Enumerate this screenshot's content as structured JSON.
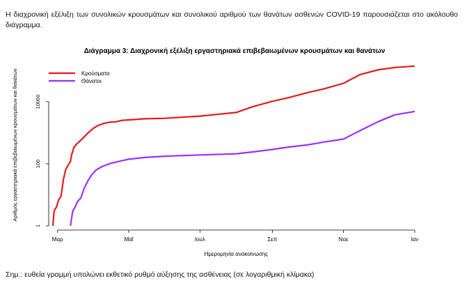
{
  "intro_text": "Η διαχρονική εξέλιξη των συνολικών κρουσμάτων και συνολικού αριθμού των θανάτων ασθενών COVID-19 παρουσιάζεται στο ακόλουθο διάγραμμα.",
  "footnote": "Σημ.: ευθεία γραμμή υπολώνει εκθετικό ρυθμό αύξησης της ασθένειας (σε λογαριθμική κλίμακα)",
  "chart_data": {
    "type": "line",
    "title": "Διάγραμμα 3: Διαχρονική εξέλιξη εργαστηριακά επιβεβαιωμένων κρουσμάτων και θανάτων",
    "xlabel": "Ημερομηνία ανακοίνωσης",
    "ylabel": "Αριθμός εργαστηριακά επιβεβαιωμένων κρουσμάτων και θανάτων",
    "y_scale": "log",
    "ylim": [
      1,
      180000
    ],
    "xlim": [
      "2020-02-26",
      "2021-01-01"
    ],
    "x_ticks": [
      {
        "date": "2020-03-01",
        "label": "Μαρ"
      },
      {
        "date": "2020-05-01",
        "label": "Μαΐ"
      },
      {
        "date": "2020-07-01",
        "label": "Ιουλ"
      },
      {
        "date": "2020-09-01",
        "label": "Σεπ"
      },
      {
        "date": "2020-11-01",
        "label": "Νοε"
      },
      {
        "date": "2021-01-01",
        "label": "Ιαν"
      }
    ],
    "y_ticks": [
      {
        "value": 1,
        "label": "1"
      },
      {
        "value": 100,
        "label": "100"
      },
      {
        "value": 10000,
        "label": "10000"
      }
    ],
    "legend_position": "top-left",
    "grid": false,
    "series": [
      {
        "name": "Κρούσματα",
        "color": "#e31a1c",
        "points": [
          [
            "2020-02-26",
            1
          ],
          [
            "2020-02-27",
            3
          ],
          [
            "2020-02-29",
            4
          ],
          [
            "2020-03-02",
            7
          ],
          [
            "2020-03-04",
            9
          ],
          [
            "2020-03-06",
            31
          ],
          [
            "2020-03-08",
            66
          ],
          [
            "2020-03-10",
            89
          ],
          [
            "2020-03-12",
            117
          ],
          [
            "2020-03-13",
            190
          ],
          [
            "2020-03-15",
            331
          ],
          [
            "2020-03-17",
            418
          ],
          [
            "2020-03-19",
            495
          ],
          [
            "2020-03-22",
            624
          ],
          [
            "2020-03-25",
            821
          ],
          [
            "2020-03-28",
            1061
          ],
          [
            "2020-04-01",
            1415
          ],
          [
            "2020-04-05",
            1735
          ],
          [
            "2020-04-10",
            2011
          ],
          [
            "2020-04-15",
            2192
          ],
          [
            "2020-04-20",
            2245
          ],
          [
            "2020-04-25",
            2506
          ],
          [
            "2020-05-01",
            2591
          ],
          [
            "2020-05-15",
            2810
          ],
          [
            "2020-06-01",
            2917
          ],
          [
            "2020-06-15",
            3148
          ],
          [
            "2020-07-01",
            3432
          ],
          [
            "2020-07-15",
            3883
          ],
          [
            "2020-08-01",
            4477
          ],
          [
            "2020-08-15",
            6858
          ],
          [
            "2020-09-01",
            10317
          ],
          [
            "2020-09-15",
            13491
          ],
          [
            "2020-10-01",
            19613
          ],
          [
            "2020-10-15",
            25802
          ],
          [
            "2020-11-01",
            39251
          ],
          [
            "2020-11-15",
            74205
          ],
          [
            "2020-12-01",
            107470
          ],
          [
            "2020-12-15",
            126372
          ],
          [
            "2021-01-01",
            140099
          ]
        ]
      },
      {
        "name": "Θάνατοι",
        "color": "#9b30ff",
        "points": [
          [
            "2020-03-12",
            1
          ],
          [
            "2020-03-14",
            3
          ],
          [
            "2020-03-16",
            4
          ],
          [
            "2020-03-18",
            6
          ],
          [
            "2020-03-21",
            8
          ],
          [
            "2020-03-24",
            17
          ],
          [
            "2020-03-27",
            28
          ],
          [
            "2020-03-30",
            43
          ],
          [
            "2020-04-03",
            63
          ],
          [
            "2020-04-08",
            81
          ],
          [
            "2020-04-15",
            102
          ],
          [
            "2020-04-25",
            125
          ],
          [
            "2020-05-01",
            140
          ],
          [
            "2020-05-15",
            160
          ],
          [
            "2020-06-01",
            175
          ],
          [
            "2020-07-01",
            192
          ],
          [
            "2020-08-01",
            210
          ],
          [
            "2020-08-15",
            240
          ],
          [
            "2020-09-01",
            290
          ],
          [
            "2020-09-15",
            345
          ],
          [
            "2020-10-01",
            406
          ],
          [
            "2020-10-15",
            500
          ],
          [
            "2020-11-01",
            626
          ],
          [
            "2020-11-15",
            1160
          ],
          [
            "2020-12-01",
            2305
          ],
          [
            "2020-12-15",
            3785
          ],
          [
            "2021-01-01",
            4838
          ]
        ]
      }
    ]
  }
}
